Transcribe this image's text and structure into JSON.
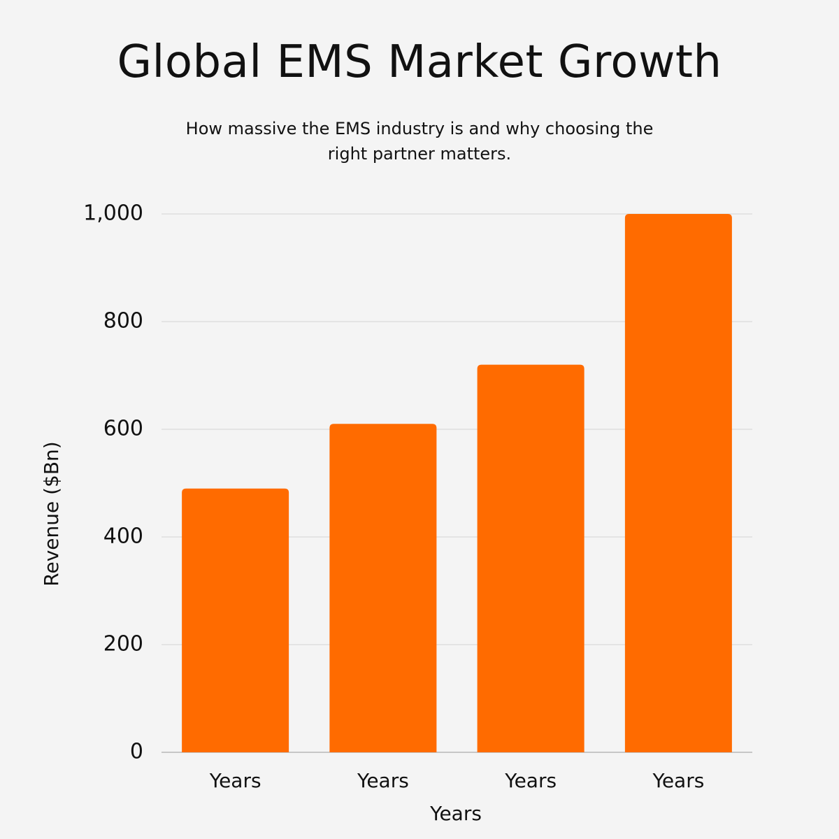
{
  "chart_data": {
    "type": "bar",
    "title": "Global EMS Market Growth",
    "subtitle": "How massive the EMS industry is and why choosing the right partner matters.",
    "x_label": "Years",
    "y_label": "Revenue ($Bn)",
    "categories": [
      "Years",
      "Years",
      "Years",
      "Years"
    ],
    "values": [
      490,
      610,
      720,
      1000
    ],
    "color": "#ff6b00",
    "ylim": [
      0,
      1000
    ],
    "yticks": [
      0,
      200,
      400,
      600,
      800,
      {
        "value": 1000,
        "label": "1,000"
      }
    ],
    "grid": true
  }
}
